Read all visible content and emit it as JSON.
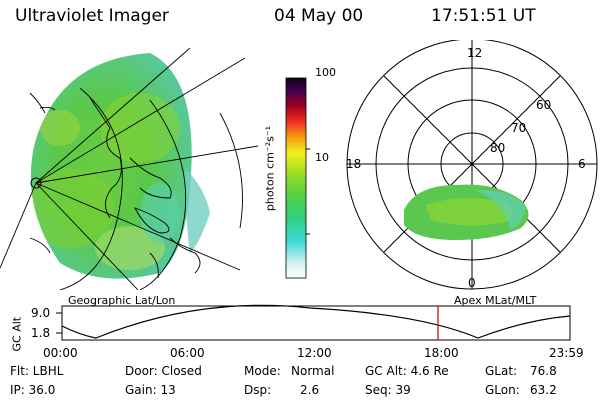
{
  "header": {
    "title": "Ultraviolet Imager",
    "date": "04 May 00",
    "time": "17:51:51 UT"
  },
  "colorbar": {
    "label": "photon cm⁻²s⁻¹",
    "ticks": [
      "100",
      "10"
    ]
  },
  "polar": {
    "mlt_labels": {
      "top": "12",
      "left": "18",
      "right": "6",
      "bottom": "0"
    },
    "lat_labels": [
      "60",
      "70",
      "80"
    ]
  },
  "panels": {
    "left_caption": "Geographic Lat/Lon",
    "right_caption": "Apex MLat/MLT"
  },
  "orbit": {
    "axis_label": "GC Alt",
    "y_ticks": [
      "9.0",
      "1.8"
    ],
    "x_ticks": [
      "00:00",
      "06:00",
      "12:00",
      "18:00",
      "23:59"
    ],
    "marker_color": "#cc0000"
  },
  "info": {
    "row1": {
      "flt": "Flt: LBHL",
      "door": "Door: Closed",
      "mode_label": "Mode:",
      "mode_value": "Normal",
      "gcalt": "GC Alt: 4.6 Re",
      "glat_label": "GLat:",
      "glat_value": "76.8"
    },
    "row2": {
      "ip": "IP: 36.0",
      "gain": "Gain: 13",
      "dsp_label": "Dsp:",
      "dsp_value": "2.6",
      "seq": "Seq: 39",
      "glon_label": "GLon:",
      "glon_value": "63.2"
    }
  }
}
